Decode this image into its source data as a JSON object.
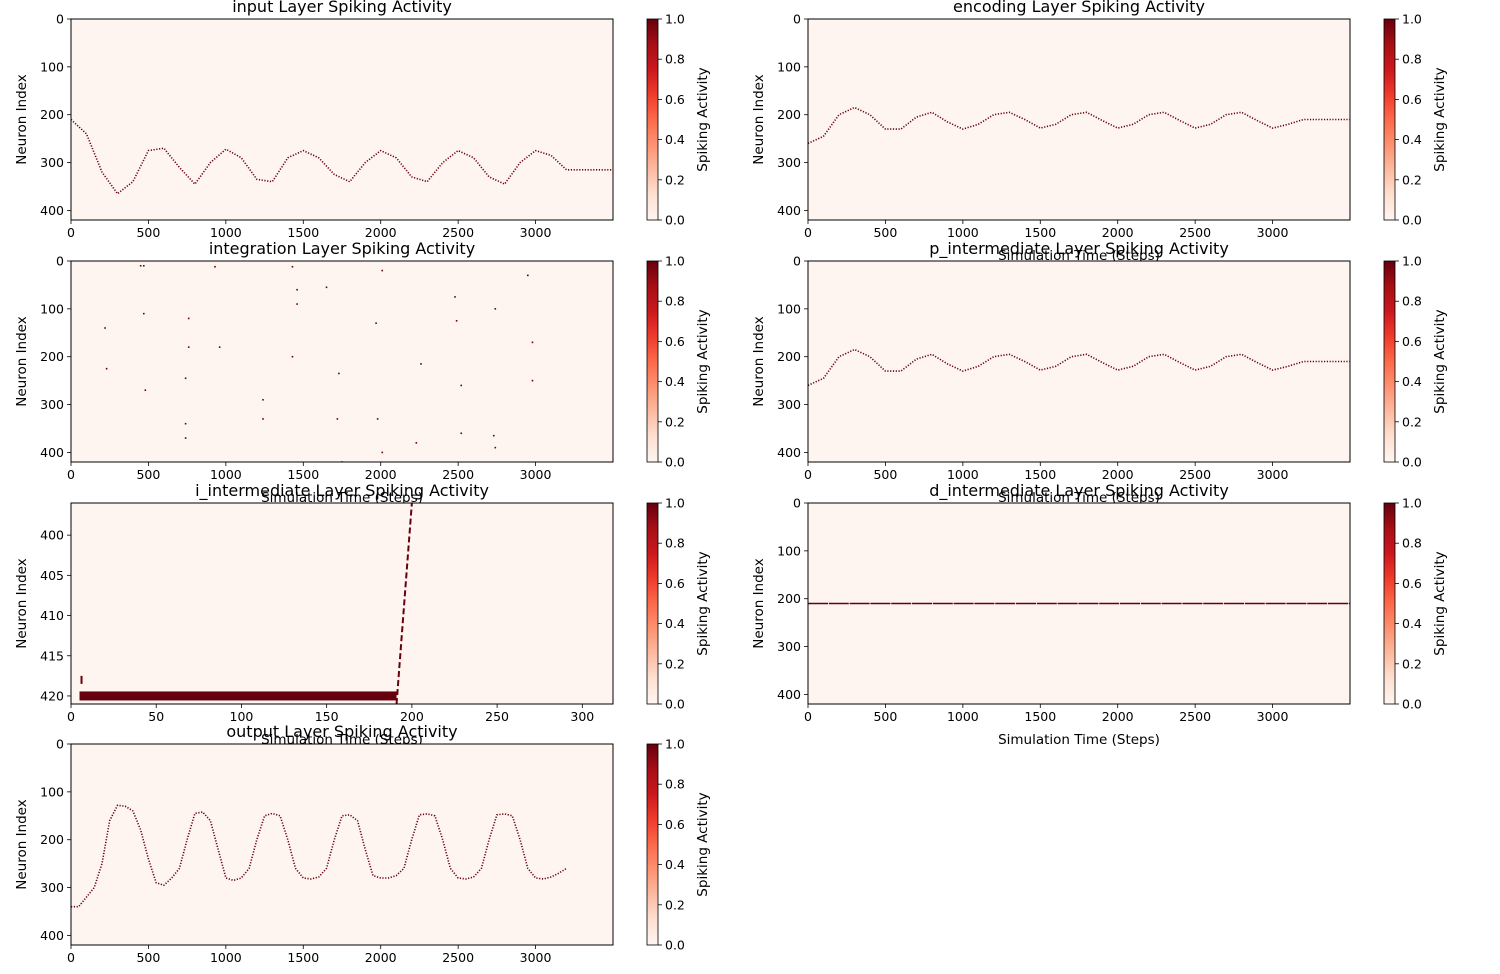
{
  "palette": {
    "background": "#fff5f0",
    "spike": "#67000d",
    "frame": "#000000"
  },
  "colorbar": {
    "label": "Spiking Activity",
    "ticks": [
      "0.0",
      "0.2",
      "0.4",
      "0.6",
      "0.8",
      "1.0"
    ],
    "scale": [
      "#fff5f0",
      "#fee0d2",
      "#fcbba1",
      "#fc9272",
      "#fb6a4a",
      "#ef3b2c",
      "#cb181d",
      "#a50f15",
      "#67000d"
    ]
  },
  "chart_data": [
    {
      "type": "heatmap",
      "title": "input Layer Spiking Activity",
      "xlabel": "",
      "ylabel": "Neuron Index",
      "xlim": [
        0,
        3500
      ],
      "ylim": [
        420,
        0
      ],
      "xticks": [
        0,
        500,
        1000,
        1500,
        2000,
        2500,
        3000
      ],
      "yticks": [
        0,
        100,
        200,
        300,
        400
      ],
      "series": [
        {
          "x": [
            0,
            100,
            200,
            300,
            400,
            500,
            600,
            700,
            800,
            900,
            1000,
            1100,
            1200,
            1300,
            1400,
            1500,
            1600,
            1700,
            1800,
            1900,
            2000,
            2100,
            2200,
            2300,
            2400,
            2500,
            2600,
            2700,
            2800,
            2900,
            3000,
            3100,
            3200,
            3250,
            3500
          ],
          "y": [
            210,
            240,
            320,
            365,
            340,
            275,
            270,
            310,
            345,
            300,
            272,
            290,
            335,
            340,
            290,
            275,
            290,
            325,
            340,
            300,
            275,
            290,
            330,
            340,
            300,
            275,
            290,
            330,
            345,
            300,
            275,
            285,
            315,
            315,
            315
          ]
        }
      ]
    },
    {
      "type": "heatmap",
      "title": "encoding Layer Spiking Activity",
      "xlabel": "Simulation Time (Steps)",
      "ylabel": "Neuron Index",
      "xlim": [
        0,
        3500
      ],
      "ylim": [
        420,
        0
      ],
      "xticks": [
        0,
        500,
        1000,
        1500,
        2000,
        2500,
        3000
      ],
      "yticks": [
        0,
        100,
        200,
        300,
        400
      ],
      "series": [
        {
          "x": [
            0,
            100,
            200,
            300,
            400,
            500,
            600,
            700,
            800,
            900,
            1000,
            1100,
            1200,
            1300,
            1400,
            1500,
            1600,
            1700,
            1800,
            1900,
            2000,
            2100,
            2200,
            2300,
            2400,
            2500,
            2600,
            2700,
            2800,
            2900,
            3000,
            3100,
            3200,
            3250,
            3500
          ],
          "y": [
            260,
            245,
            200,
            185,
            200,
            230,
            230,
            205,
            195,
            215,
            230,
            220,
            200,
            195,
            210,
            228,
            220,
            200,
            195,
            212,
            228,
            220,
            200,
            195,
            212,
            228,
            220,
            200,
            195,
            212,
            228,
            220,
            210,
            210,
            210
          ]
        }
      ]
    },
    {
      "type": "heatmap",
      "title": "integration Layer Spiking Activity",
      "xlabel": "Simulation Time (Steps)",
      "ylabel": "Neuron Index",
      "xlim": [
        0,
        3500
      ],
      "ylim": [
        420,
        0
      ],
      "xticks": [
        0,
        500,
        1000,
        1500,
        2000,
        2500,
        3000
      ],
      "yticks": [
        0,
        100,
        200,
        300,
        400
      ],
      "points": {
        "x": [
          450,
          930,
          1430,
          2010,
          2480,
          2950,
          220,
          470,
          760,
          1460,
          1650,
          1970,
          2490,
          2740,
          230,
          480,
          740,
          960,
          1730,
          2260,
          2980,
          740,
          1240,
          1430,
          1720,
          1980,
          2520,
          2740,
          740,
          1240,
          1750,
          2010,
          2230,
          2730,
          470,
          760,
          1460,
          2520,
          2980
        ],
        "y": [
          10,
          12,
          12,
          20,
          75,
          30,
          140,
          110,
          120,
          90,
          55,
          130,
          125,
          100,
          225,
          270,
          245,
          180,
          235,
          215,
          250,
          340,
          290,
          200,
          330,
          330,
          360,
          390,
          370,
          330,
          420,
          400,
          380,
          365,
          10,
          180,
          60,
          260,
          170
        ]
      }
    },
    {
      "type": "heatmap",
      "title": "p_intermediate Layer Spiking Activity",
      "xlabel": "Simulation Time (Steps)",
      "ylabel": "Neuron Index",
      "xlim": [
        0,
        3500
      ],
      "ylim": [
        420,
        0
      ],
      "xticks": [
        0,
        500,
        1000,
        1500,
        2000,
        2500,
        3000
      ],
      "yticks": [
        0,
        100,
        200,
        300,
        400
      ],
      "series": [
        {
          "x": [
            0,
            100,
            200,
            300,
            400,
            500,
            600,
            700,
            800,
            900,
            1000,
            1100,
            1200,
            1300,
            1400,
            1500,
            1600,
            1700,
            1800,
            1900,
            2000,
            2100,
            2200,
            2300,
            2400,
            2500,
            2600,
            2700,
            2800,
            2900,
            3000,
            3100,
            3200,
            3250,
            3500
          ],
          "y": [
            260,
            245,
            200,
            185,
            200,
            230,
            230,
            205,
            195,
            215,
            230,
            220,
            200,
            195,
            210,
            228,
            220,
            200,
            195,
            212,
            228,
            220,
            200,
            195,
            212,
            228,
            220,
            200,
            195,
            212,
            228,
            220,
            210,
            210,
            210
          ]
        }
      ]
    },
    {
      "type": "heatmap",
      "title": "i_intermediate Layer Spiking Activity",
      "xlabel": "Simulation Time (Steps)",
      "ylabel": "Neuron Index",
      "xlim": [
        0,
        318
      ],
      "ylim": [
        421,
        396
      ],
      "xticks": [
        0,
        50,
        100,
        150,
        200,
        250,
        300
      ],
      "yticks": [
        400,
        405,
        410,
        415,
        420
      ],
      "bar": {
        "x": [
          5,
          191
        ],
        "y": 420
      },
      "ramp": {
        "x": [
          191,
          200
        ],
        "y": [
          421,
          396
        ]
      },
      "marks": [
        {
          "x": 5,
          "y": 418
        }
      ]
    },
    {
      "type": "heatmap",
      "title": "d_intermediate Layer Spiking Activity",
      "xlabel": "Simulation Time (Steps)",
      "ylabel": "Neuron Index",
      "xlim": [
        0,
        3500
      ],
      "ylim": [
        420,
        0
      ],
      "xticks": [
        0,
        500,
        1000,
        1500,
        2000,
        2500,
        3000
      ],
      "yticks": [
        0,
        100,
        200,
        300,
        400
      ],
      "hline": {
        "y": 210,
        "x": [
          0,
          3500
        ]
      }
    },
    {
      "type": "heatmap",
      "title": "output Layer Spiking Activity",
      "xlabel": "",
      "ylabel": "Neuron Index",
      "xlim": [
        0,
        3500
      ],
      "ylim": [
        420,
        0
      ],
      "xticks": [
        0,
        500,
        1000,
        1500,
        2000,
        2500,
        3000
      ],
      "yticks": [
        0,
        100,
        200,
        300,
        400
      ],
      "series": [
        {
          "x": [
            0,
            50,
            150,
            200,
            250,
            300,
            350,
            400,
            450,
            500,
            550,
            600,
            650,
            700,
            750,
            800,
            850,
            900,
            950,
            1000,
            1050,
            1100,
            1150,
            1200,
            1250,
            1300,
            1350,
            1400,
            1450,
            1500,
            1550,
            1600,
            1650,
            1700,
            1750,
            1800,
            1850,
            1900,
            1950,
            2000,
            2050,
            2100,
            2150,
            2200,
            2250,
            2300,
            2350,
            2400,
            2450,
            2500,
            2550,
            2600,
            2650,
            2700,
            2750,
            2800,
            2850,
            2900,
            2950,
            3000,
            3050,
            3100,
            3150,
            3200
          ],
          "y": [
            340,
            340,
            300,
            250,
            160,
            128,
            130,
            140,
            180,
            240,
            290,
            295,
            280,
            260,
            200,
            145,
            142,
            160,
            220,
            280,
            285,
            280,
            260,
            200,
            150,
            145,
            150,
            200,
            260,
            280,
            282,
            278,
            260,
            200,
            150,
            148,
            160,
            220,
            275,
            280,
            280,
            275,
            260,
            200,
            148,
            146,
            150,
            200,
            260,
            280,
            282,
            278,
            260,
            200,
            148,
            146,
            150,
            200,
            260,
            280,
            282,
            278,
            270,
            260
          ]
        }
      ]
    }
  ]
}
